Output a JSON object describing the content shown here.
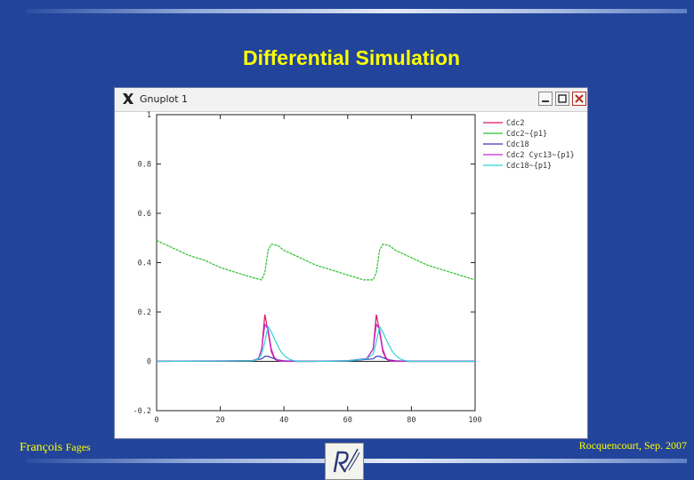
{
  "slide": {
    "title": "Differential Simulation",
    "author_first": "François",
    "author_last": "Fages",
    "venue": "Rocquencourt, Sep. 2007"
  },
  "window": {
    "title": "Gnuplot 1",
    "icon": "x11-icon",
    "buttons": [
      "minimize-icon",
      "maximize-icon",
      "close-icon"
    ]
  },
  "chart_data": {
    "type": "line",
    "title": "",
    "xlabel": "",
    "ylabel": "",
    "xlim": [
      0,
      100
    ],
    "ylim": [
      -0.2,
      1
    ],
    "xticks": [
      "0",
      "20",
      "40",
      "60",
      "80",
      "100"
    ],
    "yticks": [
      "-0.2",
      "0",
      "0.2",
      "0.4",
      "0.6",
      "0.8",
      "1"
    ],
    "grid": false,
    "legend_position": "top-right",
    "series": [
      {
        "name": "Cdc2",
        "color": "#e0106a",
        "x": [
          0,
          30,
          32,
          33,
          34,
          35,
          36,
          37,
          38,
          40,
          43,
          46,
          50,
          60,
          66,
          68,
          69,
          70,
          71,
          72,
          73,
          74,
          76,
          80,
          90,
          100
        ],
        "y": [
          0,
          0.002,
          0.01,
          0.05,
          0.19,
          0.12,
          0.04,
          0.01,
          0.002,
          0,
          0,
          0,
          0,
          0.002,
          0.01,
          0.05,
          0.19,
          0.12,
          0.04,
          0.01,
          0.002,
          0,
          0,
          0,
          0,
          0
        ]
      },
      {
        "name": "Cdc2~{p1}",
        "color": "#2fbf2f",
        "x": [
          0,
          5,
          10,
          15,
          20,
          25,
          30,
          33,
          34,
          35,
          36,
          38,
          40,
          45,
          50,
          55,
          60,
          65,
          68,
          69,
          70,
          71,
          73,
          75,
          80,
          85,
          90,
          95,
          100
        ],
        "y": [
          0.49,
          0.46,
          0.43,
          0.41,
          0.38,
          0.36,
          0.34,
          0.33,
          0.36,
          0.45,
          0.475,
          0.47,
          0.45,
          0.42,
          0.39,
          0.37,
          0.35,
          0.33,
          0.33,
          0.36,
          0.45,
          0.475,
          0.47,
          0.45,
          0.42,
          0.39,
          0.37,
          0.35,
          0.33
        ]
      },
      {
        "name": "Cdc18",
        "color": "#3a3ab0",
        "x": [
          0,
          20,
          30,
          33,
          34,
          35,
          36,
          38,
          40,
          45,
          60,
          68,
          69,
          70,
          71,
          73,
          75,
          80,
          100
        ],
        "y": [
          0,
          0.001,
          0.003,
          0.01,
          0.02,
          0.02,
          0.015,
          0.006,
          0.002,
          0,
          0.001,
          0.01,
          0.02,
          0.02,
          0.015,
          0.006,
          0.002,
          0,
          0
        ]
      },
      {
        "name": "Cdc2 Cyc13~{p1}",
        "color": "#c02ad0",
        "x": [
          0,
          30,
          32,
          33,
          34,
          35,
          36,
          37,
          38,
          40,
          43,
          46,
          50,
          60,
          66,
          68,
          69,
          70,
          71,
          72,
          73,
          74,
          76,
          80,
          90,
          100
        ],
        "y": [
          0.001,
          0.003,
          0.012,
          0.05,
          0.15,
          0.13,
          0.05,
          0.015,
          0.004,
          0.001,
          0.001,
          0.001,
          0.001,
          0.003,
          0.012,
          0.05,
          0.15,
          0.13,
          0.05,
          0.015,
          0.004,
          0.001,
          0.001,
          0.001,
          0.001,
          0.001
        ]
      },
      {
        "name": "Cdc18~{p1}",
        "color": "#2fd4d4",
        "x": [
          0,
          30,
          32,
          33,
          34,
          35,
          36,
          37,
          38,
          39,
          40,
          41,
          42,
          43,
          45,
          50,
          60,
          66,
          68,
          69,
          70,
          71,
          72,
          73,
          74,
          75,
          76,
          77,
          78,
          80,
          90,
          100
        ],
        "y": [
          0,
          0.002,
          0.01,
          0.03,
          0.08,
          0.14,
          0.12,
          0.09,
          0.065,
          0.04,
          0.025,
          0.014,
          0.007,
          0.003,
          0,
          0,
          0.002,
          0.01,
          0.03,
          0.08,
          0.14,
          0.12,
          0.09,
          0.065,
          0.04,
          0.025,
          0.014,
          0.007,
          0.003,
          0,
          0,
          0
        ]
      }
    ]
  }
}
